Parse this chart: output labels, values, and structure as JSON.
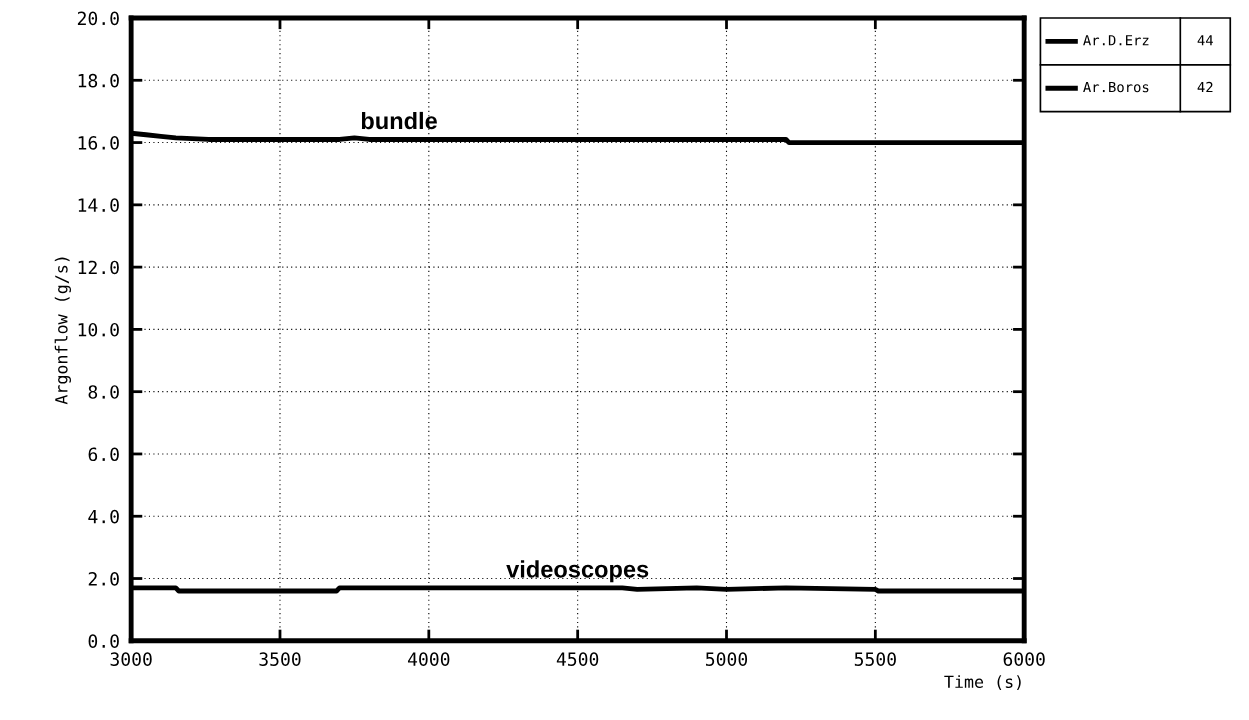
{
  "chart_data": {
    "type": "line",
    "xlabel": "Time (s)",
    "ylabel": "Argonflow (g/s)",
    "xlim": [
      3000,
      6000
    ],
    "xticks": [
      3000,
      3500,
      4000,
      4500,
      5000,
      5500,
      6000
    ],
    "ylim": [
      0,
      20
    ],
    "yticks": [
      {
        "value": 0,
        "label": "0.0"
      },
      {
        "value": 2,
        "label": "2.0"
      },
      {
        "value": 4,
        "label": "4.0"
      },
      {
        "value": 6,
        "label": "6.0"
      },
      {
        "value": 8,
        "label": "8.0"
      },
      {
        "value": 10,
        "label": "10.0"
      },
      {
        "value": 12,
        "label": "12.0"
      },
      {
        "value": 14,
        "label": "14.0"
      },
      {
        "value": 16,
        "label": "16.0"
      },
      {
        "value": 18,
        "label": "18.0"
      },
      {
        "value": 20,
        "label": "20.0"
      }
    ],
    "grid": true,
    "legend": "top right",
    "marker": "none",
    "line_style": "solid",
    "series": [
      {
        "name": "Ar.D.Erz",
        "color": "#000000",
        "x": [
          3000,
          3050,
          3100,
          3150,
          3260,
          3700,
          3750,
          3800,
          5200,
          5210,
          6000
        ],
        "values": [
          16.3,
          16.25,
          16.2,
          16.15,
          16.1,
          16.1,
          16.15,
          16.1,
          16.1,
          16.0,
          16.0
        ]
      },
      {
        "name": "Ar.Boros",
        "color": "#000000",
        "x": [
          3000,
          3150,
          3160,
          3690,
          3700,
          4650,
          4700,
          4900,
          5000,
          5200,
          5500,
          5510,
          6000
        ],
        "values": [
          1.7,
          1.7,
          1.6,
          1.6,
          1.7,
          1.7,
          1.65,
          1.7,
          1.65,
          1.7,
          1.65,
          1.6,
          1.6
        ]
      }
    ],
    "annotations": [
      {
        "text": "bundle",
        "x": 3900,
        "y": 16.1
      },
      {
        "text": "videoscopes",
        "x": 4500,
        "y": 1.7
      },
      "44",
      "42"
    ]
  }
}
